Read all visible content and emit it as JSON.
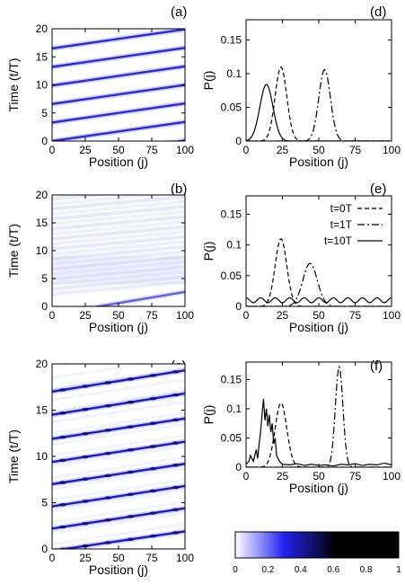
{
  "panel_labels": {
    "a": "(a)",
    "b": "(b)",
    "c": "(c)",
    "d": "(d)",
    "e": "(e)",
    "f": "(f)"
  },
  "colorbar": {
    "ticks": [
      "0",
      "0.2",
      "0.4",
      "0.6",
      "0.8",
      "1"
    ],
    "stops": [
      "#ffffff",
      "#2222ee",
      "#000000"
    ]
  },
  "chart_data": [
    {
      "id": "a",
      "type": "heatmap",
      "title": "",
      "xlabel": "Position (j)",
      "ylabel": "Time (t/T)",
      "xlim": [
        0,
        100
      ],
      "ylim": [
        0,
        20
      ],
      "xticks": [
        "0",
        "25",
        "50",
        "75",
        "100"
      ],
      "yticks": [
        "0",
        "5",
        "10",
        "15",
        "20"
      ],
      "description_bands": "narrow diagonal trails of high P(j); trail crosses position 100 after each period of about 3.3 T",
      "trails": [
        {
          "t_at_x0": -3.3,
          "t_at_x100": 0.1
        },
        {
          "t_at_x0": 0.0,
          "t_at_x100": 3.4
        },
        {
          "t_at_x0": 3.3,
          "t_at_x100": 6.7
        },
        {
          "t_at_x0": 6.6,
          "t_at_x100": 10.0
        },
        {
          "t_at_x0": 9.9,
          "t_at_x100": 13.3
        },
        {
          "t_at_x0": 13.2,
          "t_at_x100": 16.6
        },
        {
          "t_at_x0": 16.5,
          "t_at_x100": 19.9
        }
      ]
    },
    {
      "id": "b",
      "type": "heatmap",
      "title": "",
      "xlabel": "Position (j)",
      "ylabel": "Time (t/T)",
      "xlim": [
        0,
        100
      ],
      "ylim": [
        0,
        20
      ],
      "xticks": [
        "0",
        "25",
        "50",
        "75",
        "100"
      ],
      "yticks": [
        "0",
        "5",
        "10",
        "15",
        "20"
      ],
      "trails": [
        {
          "t_at_x0": -1.4,
          "t_at_x100": 2.6,
          "intensity": 0.7
        }
      ],
      "diffuse_background": "faint spread stripes for t > 3"
    },
    {
      "id": "c",
      "type": "heatmap",
      "title": "",
      "xlabel": "Position (j)",
      "ylabel": "Time (t/T)",
      "xlim": [
        0,
        100
      ],
      "ylim": [
        0,
        20
      ],
      "xticks": [
        "0",
        "25",
        "50",
        "75",
        "100"
      ],
      "yticks": [
        "0",
        "5",
        "10",
        "15",
        "20"
      ],
      "trails": [
        {
          "t_at_x0": -0.2,
          "t_at_x100": 1.9
        },
        {
          "t_at_x0": 2.2,
          "t_at_x100": 4.4
        },
        {
          "t_at_x0": 4.6,
          "t_at_x100": 6.8
        },
        {
          "t_at_x0": 7.0,
          "t_at_x100": 9.2
        },
        {
          "t_at_x0": 9.4,
          "t_at_x100": 11.6
        },
        {
          "t_at_x0": 11.9,
          "t_at_x100": 14.1
        },
        {
          "t_at_x0": 14.5,
          "t_at_x100": 16.8
        },
        {
          "t_at_x0": 17.0,
          "t_at_x100": 19.3
        }
      ]
    },
    {
      "id": "d",
      "type": "line",
      "xlabel": "Position (j)",
      "ylabel": "P(j)",
      "xlim": [
        0,
        100
      ],
      "ylim": [
        0,
        0.18
      ],
      "xticks": [
        "0",
        "25",
        "50",
        "75",
        "100"
      ],
      "yticks": [
        "0",
        "0.05",
        "0.1",
        "0.15"
      ],
      "series": [
        {
          "style": "dashed",
          "peaks": [
            {
              "center": 24,
              "height": 0.11,
              "width": 4
            }
          ]
        },
        {
          "style": "dashdot",
          "peaks": [
            {
              "center": 54,
              "height": 0.106,
              "width": 4
            }
          ]
        },
        {
          "style": "solid",
          "peaks": [
            {
              "center": 14,
              "height": 0.084,
              "width": 4.5
            }
          ]
        }
      ]
    },
    {
      "id": "e",
      "type": "line",
      "xlabel": "Position (j)",
      "ylabel": "P(j)",
      "xlim": [
        0,
        100
      ],
      "ylim": [
        0,
        0.18
      ],
      "xticks": [
        "0",
        "25",
        "50",
        "75",
        "100"
      ],
      "yticks": [
        "0",
        "0.05",
        "0.1",
        "0.15"
      ],
      "legend_position": "top-right",
      "series": [
        {
          "name": "t=0T",
          "style": "dashed",
          "peaks": [
            {
              "center": 24,
              "height": 0.11,
              "width": 4
            }
          ]
        },
        {
          "name": "t=1T",
          "style": "dashdot",
          "peaks": [
            {
              "center": 44,
              "height": 0.07,
              "width": 5
            }
          ]
        },
        {
          "name": "t=10T",
          "style": "solid",
          "baseline": 0.01,
          "ripple_amplitude": 0.004,
          "ripple_period": 10
        }
      ]
    },
    {
      "id": "f",
      "type": "line",
      "xlabel": "Position (j)",
      "ylabel": "P(j)",
      "xlim": [
        0,
        100
      ],
      "ylim": [
        0,
        0.18
      ],
      "xticks": [
        "0",
        "25",
        "50",
        "75",
        "100"
      ],
      "yticks": [
        "0",
        "0.05",
        "0.1",
        "0.15"
      ],
      "series": [
        {
          "style": "dashed",
          "peaks": [
            {
              "center": 24,
              "height": 0.11,
              "width": 4
            }
          ]
        },
        {
          "style": "dashdot",
          "peaks": [
            {
              "center": 64,
              "height": 0.172,
              "width": 2.6
            }
          ]
        },
        {
          "style": "solid",
          "points": [
            [
              0,
              0.005
            ],
            [
              2,
              0.01
            ],
            [
              3,
              0.02
            ],
            [
              5,
              0.01
            ],
            [
              7,
              0.03
            ],
            [
              8,
              0.015
            ],
            [
              9,
              0.04
            ],
            [
              10,
              0.06
            ],
            [
              11,
              0.09
            ],
            [
              12,
              0.117
            ],
            [
              13,
              0.08
            ],
            [
              14,
              0.1
            ],
            [
              15,
              0.07
            ],
            [
              16,
              0.09
            ],
            [
              17,
              0.06
            ],
            [
              18,
              0.075
            ],
            [
              19,
              0.04
            ],
            [
              20,
              0.05
            ],
            [
              21,
              0.02
            ],
            [
              23,
              0.01
            ],
            [
              25,
              0.005
            ],
            [
              30,
              0.004
            ],
            [
              35,
              0.006
            ],
            [
              40,
              0.003
            ],
            [
              45,
              0.005
            ],
            [
              50,
              0.003
            ],
            [
              55,
              0.004
            ],
            [
              60,
              0.002
            ],
            [
              65,
              0.005
            ],
            [
              70,
              0.004
            ],
            [
              75,
              0.006
            ],
            [
              80,
              0.003
            ],
            [
              85,
              0.005
            ],
            [
              90,
              0.004
            ],
            [
              95,
              0.007
            ],
            [
              100,
              0.004
            ]
          ]
        }
      ]
    }
  ]
}
